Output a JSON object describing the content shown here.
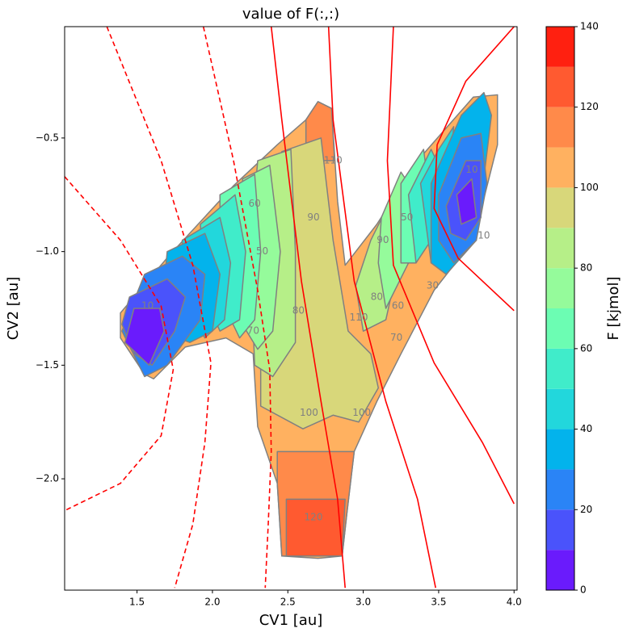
{
  "chart_data": {
    "type": "contour",
    "title": "value of F(:,:)",
    "x_label": "CV1 [au]",
    "y_label": "CV2 [au]",
    "xlim": [
      1.02,
      4.02
    ],
    "ylim": [
      -2.49,
      -0.01
    ],
    "xticks": [
      1.5,
      {
        "value": 2,
        "label": "2.0"
      },
      2.5,
      {
        "value": 3,
        "label": "3.0"
      },
      3.5,
      {
        "value": 4,
        "label": "4.0"
      }
    ],
    "yticks": [
      {
        "value": -0.5,
        "label": "−0.5"
      },
      {
        "value": -1,
        "label": "−1.0"
      },
      {
        "value": -1.5,
        "label": "−1.5"
      },
      {
        "value": -2,
        "label": "−2.0"
      }
    ],
    "colorbar": {
      "label": "F [kjmol]",
      "lim": [
        0,
        140
      ],
      "ticks": [
        0,
        20,
        40,
        60,
        80,
        100,
        120,
        140
      ],
      "levels": [
        0,
        10,
        20,
        30,
        40,
        50,
        60,
        70,
        80,
        90,
        100,
        110,
        120,
        130,
        140
      ],
      "colors": [
        "#6a1bfc",
        "#4a53fb",
        "#2a84f6",
        "#03b3ec",
        "#22d7dc",
        "#40ecca",
        "#6cfdb3",
        "#95fb9b",
        "#b6ef88",
        "#d8d77a",
        "#ffb160",
        "#ff8a4a",
        "#ff5a30",
        "#ff2010"
      ]
    },
    "contour_line_color": "#808080",
    "regions": [
      {
        "level": 100,
        "x": [
          1.39,
          1.71,
          2.14,
          2.43,
          2.62,
          2.7,
          2.79,
          2.83,
          2.88,
          3.09,
          3.36,
          3.73,
          3.89,
          3.89,
          3.73,
          3.47,
          3.25,
          3.09,
          2.94,
          2.89,
          2.86,
          2.7,
          2.46,
          2.43,
          2.3,
          2.27,
          2.09,
          1.82,
          1.61,
          1.55,
          1.39
        ],
        "y": [
          -1.27,
          -1.02,
          -0.71,
          -0.53,
          -0.42,
          -0.34,
          -0.37,
          -0.78,
          -1.06,
          -0.88,
          -0.6,
          -0.32,
          -0.31,
          -0.53,
          -0.95,
          -1.17,
          -1.45,
          -1.66,
          -1.88,
          -2.16,
          -2.34,
          -2.35,
          -2.34,
          -2.02,
          -1.77,
          -1.45,
          -1.38,
          -1.42,
          -1.56,
          -1.54,
          -1.38
        ]
      },
      {
        "level": 110,
        "x": [
          2.43,
          2.94,
          2.89,
          2.86,
          2.46,
          2.43
        ],
        "y": [
          -1.88,
          -1.88,
          -2.16,
          -2.34,
          -2.34,
          -2.02
        ]
      },
      {
        "level": 110,
        "x": [
          2.62,
          2.7,
          2.79,
          2.81,
          2.62
        ],
        "y": [
          -0.42,
          -0.34,
          -0.37,
          -0.6,
          -0.6
        ]
      },
      {
        "level": 120,
        "x": [
          2.49,
          2.88,
          2.86,
          2.49
        ],
        "y": [
          -2.09,
          -2.09,
          -2.34,
          -2.34
        ]
      },
      {
        "level": 90,
        "x": [
          2.46,
          2.72,
          2.8,
          2.9,
          3.05,
          3.1,
          2.97,
          2.8,
          2.6,
          2.32,
          2.32,
          2.4
        ],
        "y": [
          -0.56,
          -0.5,
          -0.95,
          -1.35,
          -1.45,
          -1.6,
          -1.75,
          -1.72,
          -1.78,
          -1.68,
          -1.35,
          -1.0
        ]
      },
      {
        "level": 80,
        "x": [
          2.3,
          2.52,
          2.55,
          2.55,
          2.4,
          2.28,
          2.25
        ],
        "y": [
          -0.6,
          -0.55,
          -1.0,
          -1.4,
          -1.55,
          -1.5,
          -1.0
        ]
      },
      {
        "level": 80,
        "x": [
          3.05,
          3.2,
          3.25,
          3.15,
          3.0,
          2.95
        ],
        "y": [
          -0.95,
          -0.75,
          -1.0,
          -1.3,
          -1.35,
          -1.15
        ]
      },
      {
        "level": 70,
        "x": [
          2.2,
          2.38,
          2.45,
          2.4,
          2.3,
          2.18
        ],
        "y": [
          -0.68,
          -0.62,
          -1.0,
          -1.35,
          -1.43,
          -1.3
        ]
      },
      {
        "level": 70,
        "x": [
          3.12,
          3.25,
          3.35,
          3.3,
          3.15,
          3.1
        ],
        "y": [
          -0.85,
          -0.65,
          -0.75,
          -1.05,
          -1.25,
          -1.05
        ]
      },
      {
        "level": 60,
        "x": [
          2.05,
          2.28,
          2.32,
          2.28,
          2.18,
          2.05
        ],
        "y": [
          -0.75,
          -0.66,
          -1.0,
          -1.3,
          -1.38,
          -1.2
        ]
      },
      {
        "level": 60,
        "x": [
          3.25,
          3.4,
          3.45,
          3.35,
          3.25
        ],
        "y": [
          -0.7,
          -0.55,
          -0.8,
          -1.05,
          -1.05
        ]
      },
      {
        "level": 50,
        "x": [
          1.92,
          2.15,
          2.22,
          2.18,
          2.05,
          1.95
        ],
        "y": [
          -0.88,
          -0.75,
          -1.0,
          -1.3,
          -1.35,
          -1.2
        ]
      },
      {
        "level": 50,
        "x": [
          3.3,
          3.45,
          3.52,
          3.45,
          3.35
        ],
        "y": [
          -0.75,
          -0.55,
          -0.65,
          -0.95,
          -1.05
        ]
      },
      {
        "level": 40,
        "x": [
          1.8,
          2.05,
          2.12,
          2.08,
          1.95,
          1.8
        ],
        "y": [
          -0.95,
          -0.85,
          -1.05,
          -1.3,
          -1.38,
          -1.2
        ]
      },
      {
        "level": 40,
        "x": [
          3.38,
          3.5,
          3.6,
          3.55,
          3.45
        ],
        "y": [
          -0.7,
          -0.55,
          -0.45,
          -0.8,
          -1.05
        ]
      },
      {
        "level": 30,
        "x": [
          1.7,
          1.95,
          2.05,
          2.0,
          1.85,
          1.65
        ],
        "y": [
          -1.0,
          -0.92,
          -1.1,
          -1.35,
          -1.4,
          -1.35
        ]
      },
      {
        "level": 30,
        "x": [
          3.45,
          3.65,
          3.8,
          3.85,
          3.75,
          3.55,
          3.45
        ],
        "y": [
          -0.7,
          -0.4,
          -0.3,
          -0.4,
          -0.95,
          -1.1,
          -1.05
        ]
      },
      {
        "level": 20,
        "x": [
          1.55,
          1.8,
          1.95,
          1.92,
          1.7,
          1.55,
          1.4
        ],
        "y": [
          -1.1,
          -1.02,
          -1.1,
          -1.3,
          -1.5,
          -1.55,
          -1.35
        ]
      },
      {
        "level": 20,
        "x": [
          3.5,
          3.65,
          3.78,
          3.82,
          3.75,
          3.6,
          3.5
        ],
        "y": [
          -0.75,
          -0.5,
          -0.48,
          -0.7,
          -0.95,
          -1.05,
          -0.95
        ]
      },
      {
        "level": 10,
        "x": [
          1.45,
          1.7,
          1.82,
          1.75,
          1.6,
          1.48,
          1.4
        ],
        "y": [
          -1.2,
          -1.12,
          -1.2,
          -1.35,
          -1.5,
          -1.45,
          -1.32
        ]
      },
      {
        "level": 10,
        "x": [
          3.55,
          3.68,
          3.78,
          3.78,
          3.68,
          3.58
        ],
        "y": [
          -0.8,
          -0.6,
          -0.6,
          -0.85,
          -0.95,
          -0.92
        ]
      },
      {
        "level": 0,
        "x": [
          1.48,
          1.65,
          1.68,
          1.58,
          1.42
        ],
        "y": [
          -1.25,
          -1.25,
          -1.35,
          -1.5,
          -1.4
        ]
      },
      {
        "level": 0,
        "x": [
          3.62,
          3.72,
          3.75,
          3.65
        ],
        "y": [
          -0.75,
          -0.68,
          -0.85,
          -0.88
        ]
      }
    ],
    "contour_labels": [
      {
        "text": 10,
        "x": 1.57,
        "y": -1.24
      },
      {
        "text": 10,
        "x": 3.72,
        "y": -0.64
      },
      {
        "text": 10,
        "x": 3.8,
        "y": -0.93
      },
      {
        "text": 50,
        "x": 2.33,
        "y": -1.0
      },
      {
        "text": 60,
        "x": 2.28,
        "y": -0.79
      },
      {
        "text": 70,
        "x": 2.27,
        "y": -1.35
      },
      {
        "text": 80,
        "x": 2.57,
        "y": -1.26
      },
      {
        "text": 90,
        "x": 2.67,
        "y": -0.85
      },
      {
        "text": 110,
        "x": 2.8,
        "y": -0.6
      },
      {
        "text": 110,
        "x": 2.97,
        "y": -1.29
      },
      {
        "text": 80,
        "x": 3.09,
        "y": -1.2
      },
      {
        "text": 60,
        "x": 3.23,
        "y": -1.24
      },
      {
        "text": 70,
        "x": 3.22,
        "y": -1.38
      },
      {
        "text": 90,
        "x": 3.13,
        "y": -0.95
      },
      {
        "text": 50,
        "x": 3.29,
        "y": -0.85
      },
      {
        "text": 100,
        "x": 2.64,
        "y": -1.71
      },
      {
        "text": 100,
        "x": 2.99,
        "y": -1.71
      },
      {
        "text": 120,
        "x": 2.67,
        "y": -2.17
      },
      {
        "text": 30,
        "x": 3.46,
        "y": -1.15
      }
    ],
    "curves_color": "#ff0000",
    "curves": [
      {
        "style": "dashed",
        "x": [
          1.02,
          1.39,
          1.66,
          1.74,
          1.66,
          1.39,
          1.02
        ],
        "y": [
          -0.67,
          -0.95,
          -1.24,
          -1.52,
          -1.81,
          -2.02,
          -2.14
        ]
      },
      {
        "style": "dashed",
        "x": [
          1.3,
          1.66,
          1.87,
          1.99,
          1.95,
          1.87,
          1.75
        ],
        "y": [
          -0.01,
          -0.6,
          -1.06,
          -1.49,
          -1.84,
          -2.2,
          -2.48
        ]
      },
      {
        "style": "dashed",
        "x": [
          1.94,
          2.14,
          2.3,
          2.38,
          2.39,
          2.37,
          2.35
        ],
        "y": [
          -0.01,
          -0.6,
          -1.17,
          -1.52,
          -1.88,
          -2.2,
          -2.48
        ]
      },
      {
        "style": "solid",
        "x": [
          2.39,
          2.46,
          2.59,
          2.72,
          2.83,
          2.88
        ],
        "y": [
          -0.01,
          -0.42,
          -1.13,
          -1.66,
          -2.09,
          -2.48
        ]
      },
      {
        "style": "solid",
        "x": [
          2.77,
          2.8,
          2.94,
          3.15,
          3.36,
          3.48
        ],
        "y": [
          -0.01,
          -0.42,
          -1.13,
          -1.66,
          -2.09,
          -2.48
        ]
      },
      {
        "style": "solid",
        "x": [
          3.2,
          3.16,
          3.2,
          3.47,
          3.79,
          4.0
        ],
        "y": [
          -0.01,
          -0.6,
          -1.06,
          -1.49,
          -1.84,
          -2.11
        ]
      },
      {
        "style": "solid",
        "x": [
          4.0,
          3.68,
          3.49,
          3.47,
          3.63,
          4.0
        ],
        "y": [
          -0.01,
          -0.25,
          -0.53,
          -0.81,
          -1.03,
          -1.26
        ]
      }
    ]
  }
}
